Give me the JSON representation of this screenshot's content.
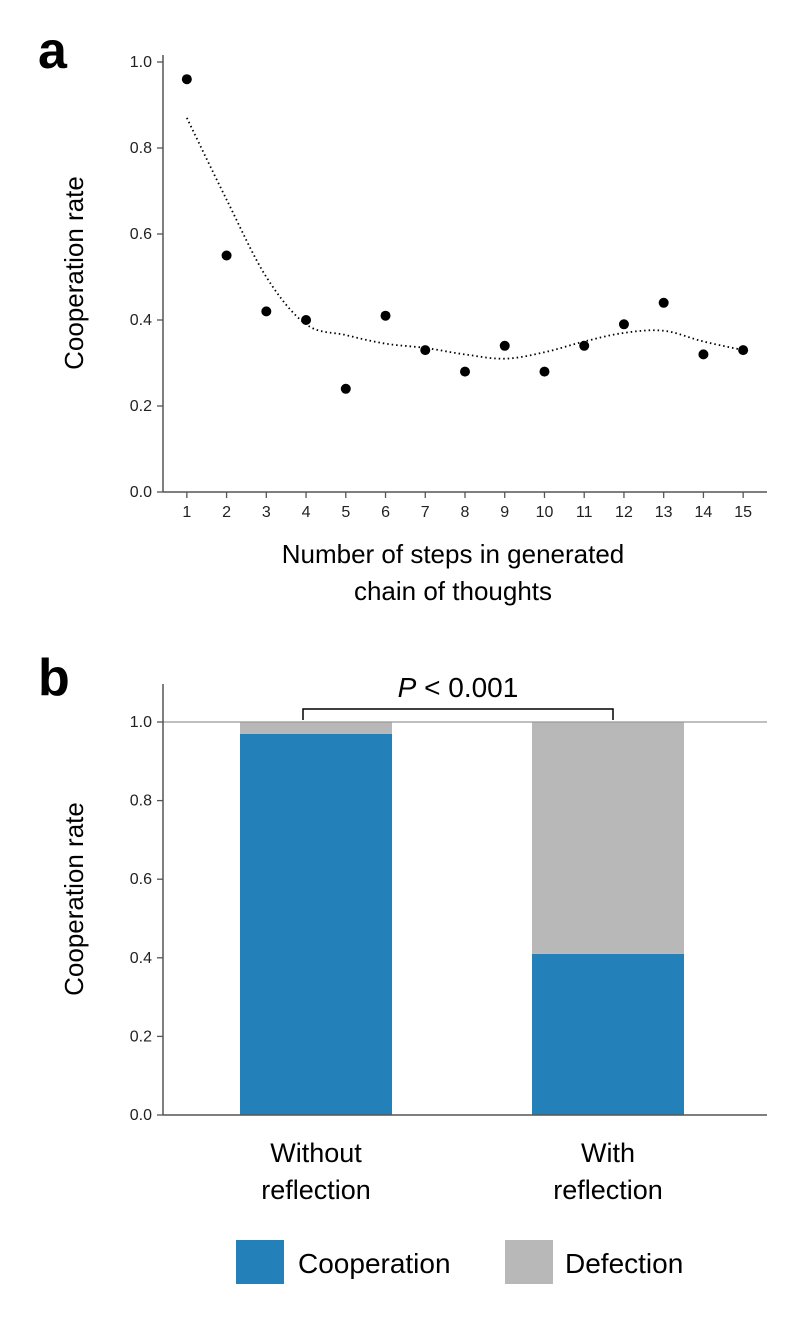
{
  "chart_data": [
    {
      "panel": "a",
      "type": "scatter",
      "x": [
        1,
        2,
        3,
        4,
        5,
        6,
        7,
        8,
        9,
        10,
        11,
        12,
        13,
        14,
        15
      ],
      "y": [
        0.96,
        0.55,
        0.42,
        0.4,
        0.24,
        0.41,
        0.33,
        0.28,
        0.34,
        0.28,
        0.34,
        0.39,
        0.44,
        0.32,
        0.33
      ],
      "trend": {
        "style": "dotted",
        "y": [
          0.87,
          0.68,
          0.5,
          0.39,
          0.365,
          0.345,
          0.335,
          0.32,
          0.31,
          0.325,
          0.35,
          0.37,
          0.375,
          0.35,
          0.33
        ]
      },
      "xlabel_lines": [
        "Number of steps in generated",
        "chain of thoughts"
      ],
      "ylabel": "Cooperation rate",
      "xticks": [
        "1",
        "2",
        "3",
        "4",
        "5",
        "6",
        "7",
        "8",
        "9",
        "10",
        "11",
        "12",
        "13",
        "14",
        "15"
      ],
      "yticks": [
        "0.0",
        "0.2",
        "0.4",
        "0.6",
        "0.8",
        "1.0"
      ],
      "ylim": [
        0,
        1.0
      ],
      "xlim": [
        0.4,
        15.6
      ],
      "grid": false
    },
    {
      "panel": "b",
      "type": "bar",
      "stacked": true,
      "categories": [
        {
          "lines": [
            "Without",
            "reflection"
          ]
        },
        {
          "lines": [
            "With",
            "reflection"
          ]
        }
      ],
      "series": [
        {
          "name": "Cooperation",
          "color": "#2480b8",
          "values": [
            0.97,
            0.41
          ]
        },
        {
          "name": "Defection",
          "color": "#b8b8b8",
          "values": [
            0.03,
            0.59
          ]
        }
      ],
      "ylabel": "Cooperation rate",
      "yticks": [
        "0.0",
        "0.2",
        "0.4",
        "0.6",
        "0.8",
        "1.0"
      ],
      "ylim": [
        0,
        1.1
      ],
      "reference_line": 1.0,
      "annotation": {
        "italic": "P",
        "rest": " < 0.001"
      },
      "legend_position": "bottom-center",
      "grid": false
    }
  ],
  "colors": {
    "cooperation": "#2480b8",
    "defection": "#b8b8b8",
    "marker": "#000000",
    "axis": "#555555"
  }
}
